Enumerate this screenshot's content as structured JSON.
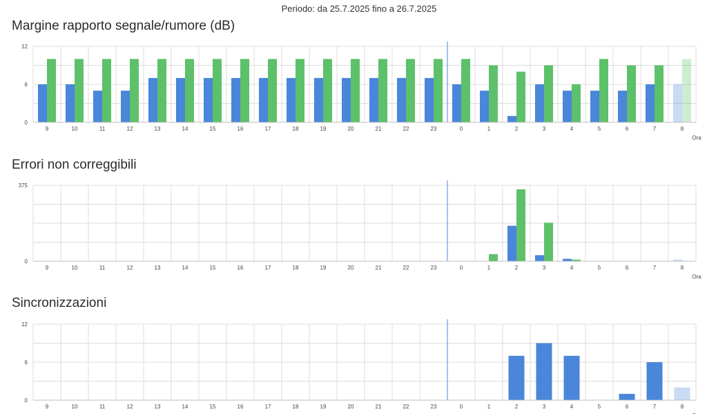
{
  "header": {
    "period": "Periodo: da 25.7.2025 fino a 26.7.2025"
  },
  "colors": {
    "series_a": "#4a86d9",
    "series_b": "#5cc16a",
    "grid": "#dcdcdc",
    "now_line": "#4a86d9"
  },
  "chart_data": [
    {
      "type": "bar",
      "title": "Margine rapporto segnale/rumore (dB)",
      "xlabel": "Ora",
      "ylim": [
        0,
        12
      ],
      "yticks": [
        "0",
        "6",
        "12"
      ],
      "categories": [
        "9",
        "10",
        "11",
        "12",
        "13",
        "14",
        "15",
        "16",
        "17",
        "18",
        "19",
        "20",
        "21",
        "22",
        "23",
        "0",
        "1",
        "2",
        "3",
        "4",
        "5",
        "6",
        "7",
        "8"
      ],
      "series": [
        {
          "values": [
            6,
            6,
            5,
            5,
            7,
            7,
            7,
            7,
            7,
            7,
            7,
            7,
            7,
            7,
            7,
            6,
            5,
            1,
            6,
            5,
            5,
            5,
            6,
            6
          ]
        },
        {
          "values": [
            10,
            10,
            10,
            10,
            10,
            10,
            10,
            10,
            10,
            10,
            10,
            10,
            10,
            10,
            10,
            10,
            9,
            8,
            9,
            6,
            10,
            9,
            9,
            10
          ]
        }
      ],
      "current_hour_index": 23,
      "divider_category": "0",
      "grid": true
    },
    {
      "type": "bar",
      "title": "Errori non correggibili",
      "xlabel": "Ora",
      "ylim": [
        0,
        375
      ],
      "yticks": [
        "0",
        "375"
      ],
      "categories": [
        "9",
        "10",
        "11",
        "12",
        "13",
        "14",
        "15",
        "16",
        "17",
        "18",
        "19",
        "20",
        "21",
        "22",
        "23",
        "0",
        "1",
        "2",
        "3",
        "4",
        "5",
        "6",
        "7",
        "8"
      ],
      "series": [
        {
          "values": [
            0,
            0,
            0,
            0,
            0,
            0,
            0,
            0,
            0,
            0,
            0,
            0,
            0,
            0,
            0,
            0,
            0,
            175,
            30,
            12,
            0,
            0,
            0,
            8
          ]
        },
        {
          "values": [
            0,
            0,
            0,
            0,
            0,
            0,
            0,
            0,
            0,
            0,
            0,
            0,
            0,
            0,
            0,
            0,
            35,
            355,
            190,
            8,
            0,
            0,
            0,
            2
          ]
        }
      ],
      "current_hour_index": 23,
      "divider_category": "0",
      "grid": true
    },
    {
      "type": "bar",
      "title": "Sincronizzazioni",
      "xlabel": "Ora",
      "ylim": [
        0,
        12
      ],
      "yticks": [
        "0",
        "6",
        "12"
      ],
      "categories": [
        "9",
        "10",
        "11",
        "12",
        "13",
        "14",
        "15",
        "16",
        "17",
        "18",
        "19",
        "20",
        "21",
        "22",
        "23",
        "0",
        "1",
        "2",
        "3",
        "4",
        "5",
        "6",
        "7",
        "8"
      ],
      "series": [
        {
          "values": [
            0,
            0,
            0,
            0,
            0,
            0,
            0,
            0,
            0,
            0,
            0,
            0,
            0,
            0,
            0,
            0,
            0,
            7,
            9,
            7,
            0,
            1,
            6,
            2
          ]
        }
      ],
      "current_hour_index": 23,
      "divider_category": "0",
      "grid": true
    }
  ]
}
